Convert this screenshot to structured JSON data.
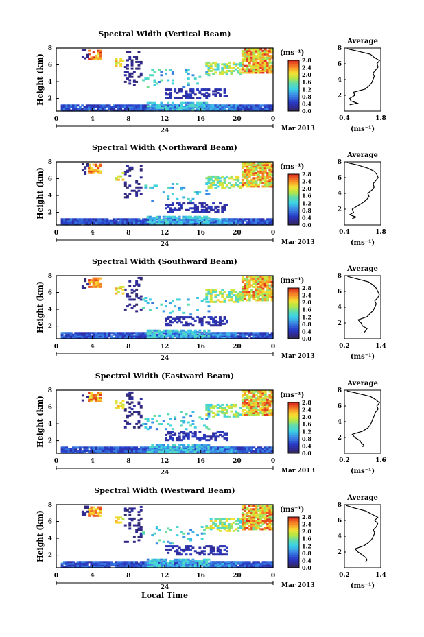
{
  "chart_data": [
    {
      "type": "heatmap",
      "title": "Spectral Width (Vertical Beam)",
      "ylabel": "Height (km)",
      "xticks": [
        "0",
        "4",
        "8",
        "12",
        "16",
        "20",
        "0"
      ],
      "ylim": [
        0.5,
        8
      ],
      "yticks": [
        "2",
        "4",
        "6",
        "8"
      ],
      "date_marker": "24",
      "month_label": "Mar 2013",
      "colorbar": {
        "unit": "(ms⁻¹)",
        "range": [
          0,
          2.8
        ],
        "ticks": [
          "0.0",
          "0.4",
          "0.8",
          "1.2",
          "1.6",
          "2.0",
          "2.4",
          "2.8"
        ]
      },
      "profile": {
        "title": "Average",
        "xlim": [
          0.4,
          1.8
        ],
        "xticks": [
          "0.4",
          "1.8"
        ],
        "ylim": [
          0,
          8
        ],
        "yticks": [
          "2",
          "4",
          "6",
          "8"
        ],
        "xlabel": "(ms⁻¹)",
        "h": [
          0.8,
          1.0,
          1.3,
          1.6,
          2.0,
          2.4,
          2.8,
          3.2,
          3.6,
          4.0,
          4.4,
          4.8,
          5.2,
          5.6,
          6.0,
          6.4,
          6.8,
          7.2,
          7.6,
          7.9
        ],
        "w": [
          0.6,
          0.9,
          0.65,
          0.6,
          0.8,
          0.75,
          1.2,
          1.35,
          1.45,
          1.5,
          1.55,
          1.5,
          1.6,
          1.7,
          1.65,
          1.75,
          1.55,
          1.4,
          0.9,
          0.5
        ]
      }
    },
    {
      "type": "heatmap",
      "title": "Spectral Width (Northward Beam)",
      "ylabel": "Height (km)",
      "xticks": [
        "0",
        "4",
        "8",
        "12",
        "16",
        "20",
        "0"
      ],
      "ylim": [
        0.5,
        8
      ],
      "yticks": [
        "2",
        "4",
        "6",
        "8"
      ],
      "date_marker": "24",
      "month_label": "Mar 2013",
      "colorbar": {
        "unit": "(ms⁻¹)",
        "range": [
          0,
          2.8
        ],
        "ticks": [
          "0.0",
          "0.4",
          "0.8",
          "1.2",
          "1.6",
          "2.0",
          "2.4",
          "2.8"
        ]
      },
      "profile": {
        "title": "Average",
        "xlim": [
          0.4,
          1.8
        ],
        "xticks": [
          "0.4",
          "1.8"
        ],
        "ylim": [
          0,
          8
        ],
        "yticks": [
          "2",
          "4",
          "6",
          "8"
        ],
        "xlabel": "(ms⁻¹)",
        "h": [
          0.8,
          1.0,
          1.3,
          1.6,
          2.0,
          2.4,
          2.8,
          3.2,
          3.6,
          4.0,
          4.4,
          4.8,
          5.2,
          5.6,
          6.0,
          6.4,
          6.8,
          7.2,
          7.6,
          7.9
        ],
        "w": [
          0.7,
          0.85,
          0.6,
          0.75,
          0.7,
          0.9,
          1.1,
          1.25,
          1.35,
          1.3,
          1.45,
          1.55,
          1.5,
          1.6,
          1.7,
          1.65,
          1.55,
          1.3,
          0.9,
          0.5
        ]
      }
    },
    {
      "type": "heatmap",
      "title": "Spectral Width (Southward Beam)",
      "ylabel": "Height (km)",
      "xticks": [
        "0",
        "4",
        "8",
        "12",
        "16",
        "20",
        "0"
      ],
      "ylim": [
        0.5,
        8
      ],
      "yticks": [
        "2",
        "4",
        "6",
        "8"
      ],
      "date_marker": "24",
      "month_label": "Mar 2013",
      "colorbar": {
        "unit": "(ms⁻¹)",
        "range": [
          0,
          2.8
        ],
        "ticks": [
          "0.0",
          "0.4",
          "0.8",
          "1.2",
          "1.6",
          "2.0",
          "2.4",
          "2.8"
        ]
      },
      "profile": {
        "title": "Average",
        "xlim": [
          0.2,
          1.4
        ],
        "xticks": [
          "0.2",
          "1.4"
        ],
        "ylim": [
          0,
          8
        ],
        "yticks": [
          "2",
          "4",
          "6",
          "8"
        ],
        "xlabel": "(ms⁻¹)",
        "h": [
          0.8,
          1.0,
          1.3,
          1.6,
          2.0,
          2.4,
          2.8,
          3.2,
          3.6,
          4.0,
          4.4,
          4.8,
          5.2,
          5.6,
          6.0,
          6.4,
          6.8,
          7.2,
          7.6,
          7.9
        ],
        "w": [
          0.85,
          0.9,
          0.95,
          0.8,
          0.75,
          0.65,
          0.95,
          1.05,
          1.15,
          1.2,
          1.25,
          1.2,
          1.3,
          1.35,
          1.3,
          1.25,
          1.15,
          1.0,
          0.6,
          0.3
        ]
      }
    },
    {
      "type": "heatmap",
      "title": "Spectral Width (Eastward Beam)",
      "ylabel": "Height (km)",
      "xticks": [
        "0",
        "4",
        "8",
        "12",
        "16",
        "20",
        "0"
      ],
      "ylim": [
        0.5,
        8
      ],
      "yticks": [
        "2",
        "4",
        "6",
        "8"
      ],
      "date_marker": "24",
      "month_label": "Mar 2013",
      "colorbar": {
        "unit": "(ms⁻¹)",
        "range": [
          0,
          2.8
        ],
        "ticks": [
          "0.0",
          "0.4",
          "0.8",
          "1.2",
          "1.6",
          "2.0",
          "2.4",
          "2.8"
        ]
      },
      "profile": {
        "title": "Average",
        "xlim": [
          0.2,
          1.6
        ],
        "xticks": [
          "0.2",
          "1.6"
        ],
        "ylim": [
          0,
          8
        ],
        "yticks": [
          "2",
          "4",
          "6",
          "8"
        ],
        "xlabel": "(ms⁻¹)",
        "h": [
          0.8,
          1.0,
          1.3,
          1.6,
          2.0,
          2.4,
          2.8,
          3.2,
          3.6,
          4.0,
          4.4,
          4.8,
          5.2,
          5.6,
          6.0,
          6.4,
          6.8,
          7.2,
          7.6,
          7.9
        ],
        "w": [
          0.9,
          0.95,
          0.85,
          0.8,
          0.6,
          0.5,
          0.9,
          1.1,
          1.2,
          1.25,
          1.3,
          1.35,
          1.4,
          1.5,
          1.45,
          1.55,
          1.4,
          1.2,
          0.7,
          0.3
        ]
      }
    },
    {
      "type": "heatmap",
      "title": "Spectral Width (Westward Beam)",
      "ylabel": "Height (km)",
      "xticks": [
        "0",
        "4",
        "8",
        "12",
        "16",
        "20",
        "0"
      ],
      "ylim": [
        0.5,
        8
      ],
      "yticks": [
        "2",
        "4",
        "6",
        "8"
      ],
      "date_marker": "24",
      "month_label": "Mar 2013",
      "xlabel": "Local Time",
      "colorbar": {
        "unit": "(ms⁻¹)",
        "range": [
          0,
          2.8
        ],
        "ticks": [
          "0.0",
          "0.4",
          "0.8",
          "1.2",
          "1.6",
          "2.0",
          "2.4",
          "2.8"
        ]
      },
      "profile": {
        "title": "Average",
        "xlim": [
          0.2,
          1.4
        ],
        "xticks": [
          "0.2",
          "1.4"
        ],
        "ylim": [
          0,
          8
        ],
        "yticks": [
          "2",
          "4",
          "6",
          "8"
        ],
        "xlabel": "(ms⁻¹)",
        "h": [
          0.8,
          1.0,
          1.3,
          1.6,
          2.0,
          2.4,
          2.8,
          3.2,
          3.6,
          4.0,
          4.4,
          4.8,
          5.2,
          5.6,
          6.0,
          6.4,
          6.8,
          7.2,
          7.6,
          7.9
        ],
        "w": [
          0.9,
          0.95,
          0.9,
          0.8,
          0.65,
          0.55,
          0.85,
          1.0,
          1.1,
          1.15,
          1.2,
          1.15,
          1.25,
          1.3,
          1.2,
          1.3,
          1.1,
          0.9,
          0.5,
          0.25
        ]
      }
    }
  ]
}
